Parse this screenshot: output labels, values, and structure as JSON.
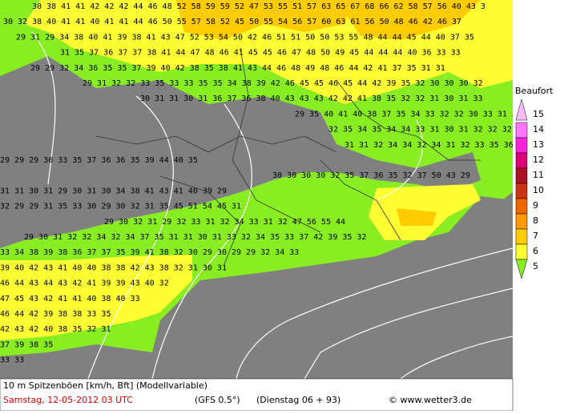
{
  "map": {
    "rows": [
      "30 38 41 41 42 42 42 44 46 48 52 58 59 59 52 47 53 55 51 57 63 65 67 68 66 62 58 57 56 40 43 3",
      "30 32 38 40 41 41 40 41 41 44 46 50 55 57 58 52 45 50 55 54 56 57 60 63 61 56 50 48 46 42 46 37",
      "29 31 29 34 38 40 41 39 38 41 43 47 52 53 54 50 42 46 51 51 50 50 53 55 48 44 44 45 44 40 37 35",
      "31 35 37 36 37 37 38 41 44 47 48 46 41 45 45 46 47 48 50 49 45 44 44 44 40 36 33 33",
      "29 29 32 34 36 35 35 37 39 40 42 38 35 38 41 43 44 46 48 49 48 46 44 42 41 37 35 31 31",
      "29 31 32 32 33 35 33 33 35 35 34 38 39 42 46 45 45 46 45 44 42 39 35 32 30 30 30 32",
      "30 31 31 30 31 36 37 36 38 40 43 43 43 42 42 41 38 35 32 32 31 30 31 33",
      "29 35 40 41 40 38 37 35 34 33 32 32 30 33 31 33 33",
      "32 35 34 35 34 34 33 31 30 31 32 32 32 32 33",
      "31 31 32 34 34 32 34 31 32 33 35 36 35 34 34",
      "29 29 29 30 33 35 37 36 36 35 39 44 40 35",
      "30 30 30 30 32 35 37 36 35 32 37 50 43 29",
      "31 31 30 31 29 30 31 30 34 38 41 43 41 40 39 29",
      "32 29 29 31 35 33 30 29 30 32 31 35 45 51 54 45 31",
      "29 30 32 31 29 32 33 31 32 34 33 31 32 47 56 55 44",
      "29 30 31 32 32 34 32 34 37 35 31 31 30 31 33 32 34 35 33 37 42 39 35 32",
      "33 34 38 39 38 36 37 37 35 39 41 38 32 30 29 30 29 29 32 34 33",
      "39 40 42 43 41 40 40 38 38 42 43 38 32 31 30 31",
      "46 44 43 44 43 42 41 39 39 43 40 32",
      "47 45 43 42 41 41 40 38 40 33",
      "46 44 42 39 38 38 33 35",
      "42 43 42 40 38 35 32 31",
      "37 39 38 35",
      "33 33"
    ],
    "legend": {
      "title": "Beaufort",
      "levels": [
        {
          "label": "15",
          "color": "#ffbbff"
        },
        {
          "label": "14",
          "color": "#ff77ff"
        },
        {
          "label": "13",
          "color": "#ff22dd"
        },
        {
          "label": "12",
          "color": "#dd0077"
        },
        {
          "label": "11",
          "color": "#aa1122"
        },
        {
          "label": "10",
          "color": "#cc3311"
        },
        {
          "label": "9",
          "color": "#ee6600"
        },
        {
          "label": "8",
          "color": "#ff9900"
        },
        {
          "label": "7",
          "color": "#ffcc00"
        },
        {
          "label": "6",
          "color": "#ffff33"
        },
        {
          "label": "5",
          "color": "#88ee22"
        }
      ]
    },
    "footer": {
      "line1": "10 m Spitzenböen [km/h, Bft] (Modellvariable)",
      "date": "Samstag, 12-05-2012  03 UTC",
      "model": "(GFS 0.5°)",
      "run": "(Dienstag 06 + 93)",
      "credit": "© www.wetter3.de"
    }
  }
}
